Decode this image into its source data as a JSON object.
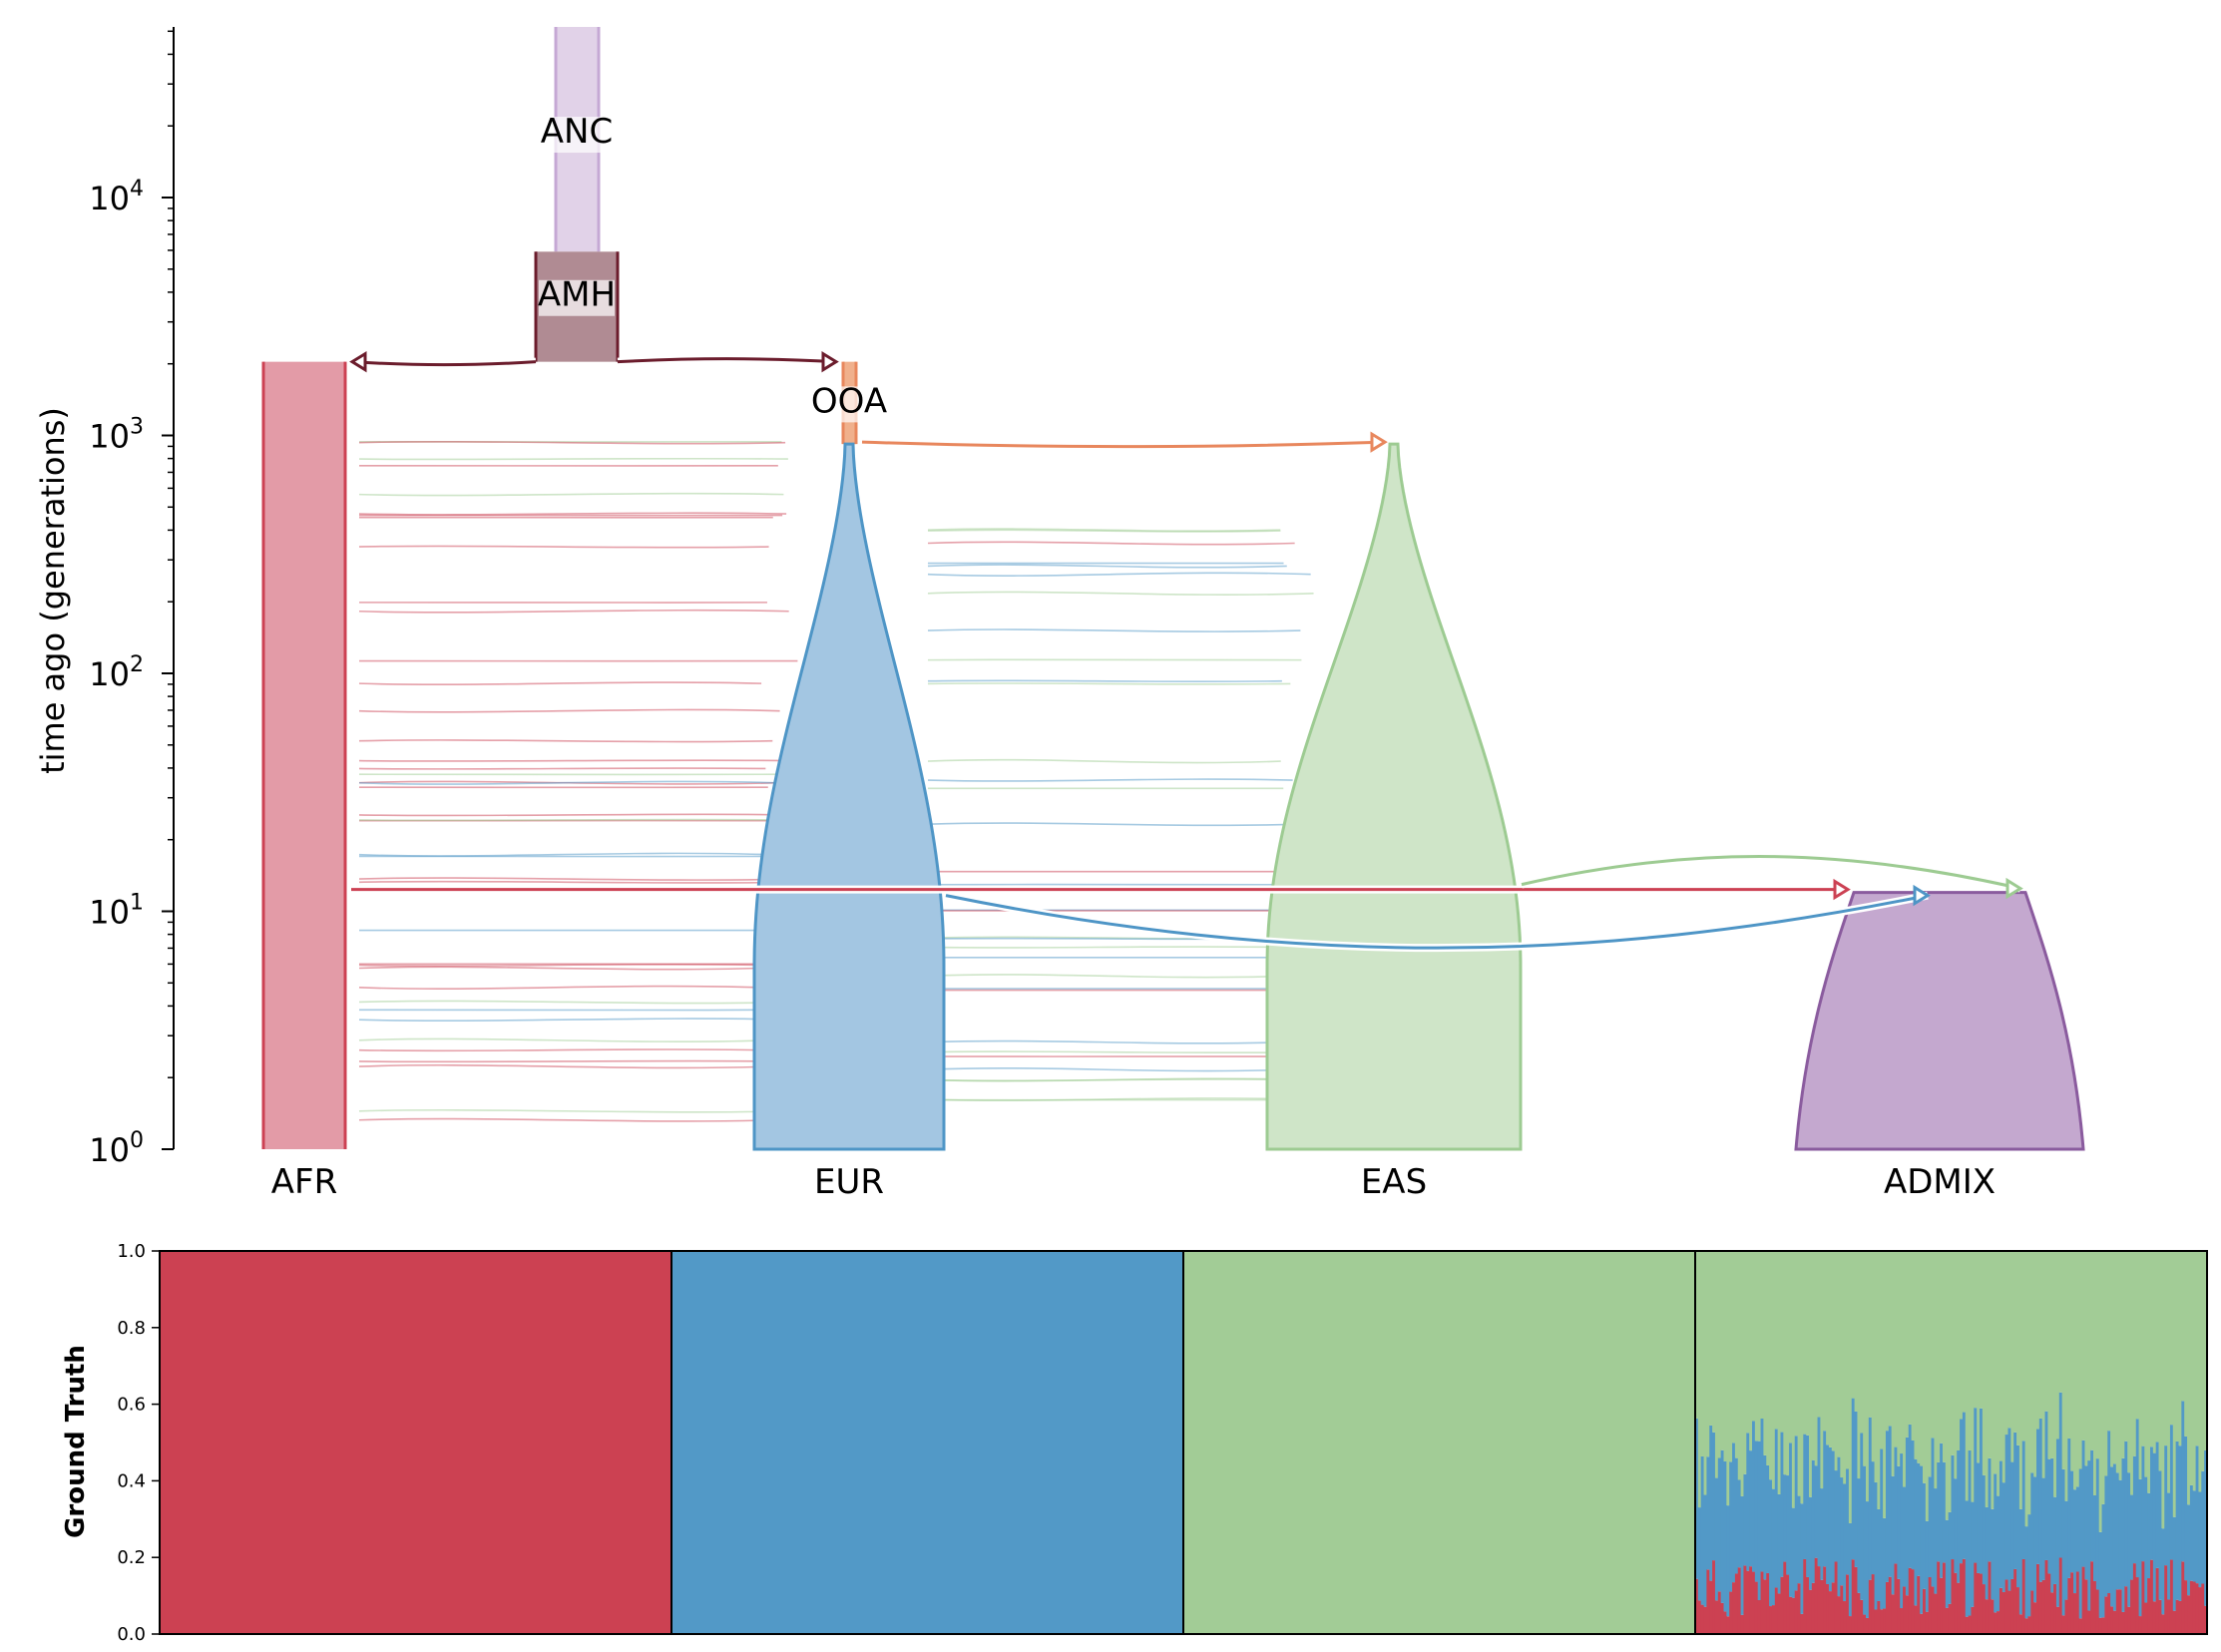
{
  "chart_data": [
    {
      "type": "demography",
      "ylabel": "time ago (generations)",
      "yscale": "log",
      "ylim": [
        1,
        55000
      ],
      "yticks": [
        {
          "value": 1,
          "base": "10",
          "exp": "0"
        },
        {
          "value": 10,
          "base": "10",
          "exp": "1"
        },
        {
          "value": 100,
          "base": "10",
          "exp": "2"
        },
        {
          "value": 1000,
          "base": "10",
          "exp": "3"
        },
        {
          "value": 10000,
          "base": "10",
          "exp": "4"
        }
      ],
      "demes": [
        {
          "name": "ANC",
          "label": "ANC",
          "start_time": 55000,
          "end_time": 5920,
          "color": "#e1d2e8",
          "edge": "#c5a8d4",
          "shape": "bar"
        },
        {
          "name": "AMH",
          "label": "AMH",
          "start_time": 5920,
          "end_time": 2040,
          "color": "#b08b93",
          "edge": "#6b1c2c",
          "shape": "bar"
        },
        {
          "name": "AFR",
          "label": "AFR",
          "start_time": 2040,
          "end_time": 1,
          "color": "#e39ba7",
          "edge": "#cc4153",
          "shape": "bar"
        },
        {
          "name": "OOA",
          "label": "OOA",
          "start_time": 2040,
          "end_time": 920,
          "color": "#f0b08c",
          "edge": "#e8875d",
          "shape": "bar"
        },
        {
          "name": "EUR",
          "label": "EUR",
          "start_time": 920,
          "end_time": 1,
          "color": "#a3c6e2",
          "edge": "#4e95c6",
          "shape": "flask"
        },
        {
          "name": "EAS",
          "label": "EAS",
          "start_time": 920,
          "end_time": 1,
          "color": "#cfe5c8",
          "edge": "#9dcb92",
          "shape": "flask"
        },
        {
          "name": "ADMIX",
          "label": "ADMIX",
          "start_time": 12,
          "end_time": 1,
          "color": "#c4a8cf",
          "edge": "#8a5b9e",
          "shape": "dome"
        }
      ],
      "pulses": [
        {
          "from": "AMH",
          "to": "AFR",
          "time": 2040
        },
        {
          "from": "AMH",
          "to": "OOA",
          "time": 2040
        },
        {
          "from": "OOA",
          "to": "EAS",
          "time": 920
        },
        {
          "from": "AFR",
          "to": "ADMIX",
          "time": 12
        },
        {
          "from": "EUR",
          "to": "ADMIX",
          "time": 12
        },
        {
          "from": "EAS",
          "to": "ADMIX",
          "time": 12
        }
      ]
    },
    {
      "type": "bar",
      "stacked": true,
      "ylabel": "Ground Truth",
      "ylim": [
        0,
        1
      ],
      "yticks": [
        "0.0",
        "0.2",
        "0.4",
        "0.6",
        "0.8",
        "1.0"
      ],
      "groups": [
        "AFR",
        "EUR",
        "EAS",
        "ADMIX"
      ],
      "series": [
        {
          "color": "#cc4152",
          "group_means": [
            1.0,
            0.0,
            0.0,
            0.12
          ]
        },
        {
          "color": "#5299c7",
          "group_means": [
            0.0,
            1.0,
            0.0,
            0.33
          ]
        },
        {
          "color": "#a2cc96",
          "group_means": [
            0.0,
            0.0,
            1.0,
            0.55
          ]
        }
      ]
    }
  ]
}
